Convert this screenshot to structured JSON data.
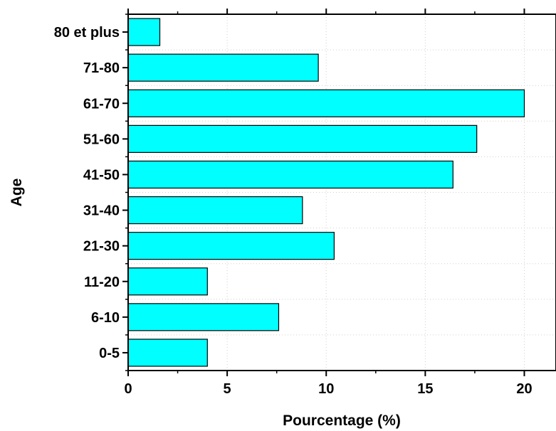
{
  "chart_data": {
    "type": "bar",
    "orientation": "horizontal",
    "categories": [
      "0-5",
      "6-10",
      "11-20",
      "21-30",
      "31-40",
      "41-50",
      "51-60",
      "61-70",
      "71-80",
      "80 et plus"
    ],
    "values": [
      4.0,
      7.6,
      4.0,
      10.4,
      8.8,
      16.4,
      17.6,
      20.0,
      9.6,
      1.6
    ],
    "title": "",
    "xlabel": "Pourcentage (%)",
    "ylabel": "Age",
    "xlim": [
      0,
      21.6
    ],
    "xticks": [
      0,
      5,
      10,
      15,
      20
    ],
    "xtick_labels": [
      "0",
      "5",
      "10",
      "15",
      "20"
    ],
    "grid": true,
    "bar_color": "#00FFFF",
    "bar_edge_color": "#000000"
  }
}
